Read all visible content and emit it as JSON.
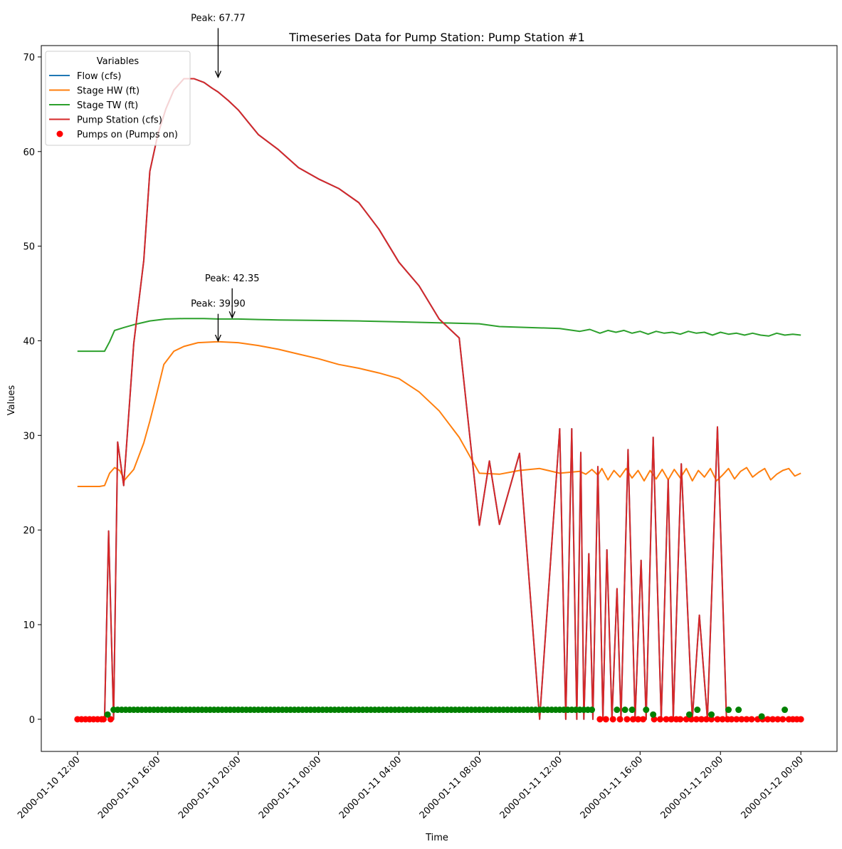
{
  "chart_data": {
    "type": "line",
    "title": "Timeseries Data for Pump Station: Pump Station #1",
    "xlabel": "Time",
    "ylabel": "Values",
    "x_tick_labels": [
      "2000-01-10 12:00",
      "2000-01-10 16:00",
      "2000-01-10 20:00",
      "2000-01-11 00:00",
      "2000-01-11 04:00",
      "2000-01-11 08:00",
      "2000-01-11 12:00",
      "2000-01-11 16:00",
      "2000-01-11 20:00",
      "2000-01-12 00:00"
    ],
    "x_tick_hours": [
      0,
      4,
      8,
      12,
      16,
      20,
      24,
      28,
      32,
      36
    ],
    "xlim_hours": [
      -1.8,
      37.8
    ],
    "ylim": [
      -3.4,
      71.2
    ],
    "y_ticks": [
      0,
      10,
      20,
      30,
      40,
      50,
      60,
      70
    ],
    "grid": false,
    "legend": {
      "title": "Variables",
      "placement": "top-left",
      "entries": [
        {
          "label": "Flow (cfs)",
          "color": "#1f77b4",
          "kind": "line"
        },
        {
          "label": "Stage HW (ft)",
          "color": "#ff7f0e",
          "kind": "line"
        },
        {
          "label": "Stage TW (ft)",
          "color": "#2ca02c",
          "kind": "line"
        },
        {
          "label": "Pump Station (cfs)",
          "color": "#d62728",
          "kind": "line"
        },
        {
          "label": "Pumps on (Pumps on)",
          "color": "#ff0000",
          "kind": "marker"
        }
      ]
    },
    "series": [
      {
        "name": "Flow (cfs)",
        "color": "#1f77b4",
        "x": [
          0,
          1.35,
          1.55,
          1.8,
          2.0,
          2.3,
          2.8,
          3.3,
          3.6,
          4.0,
          4.4,
          4.8,
          5.3,
          5.8,
          6.3,
          6.7,
          7.0,
          7.5,
          8.0,
          8.5,
          9.0,
          10.0,
          11.0,
          12.0,
          13.0,
          14.0,
          15.0,
          16.0,
          17.0,
          18.0,
          19.0,
          20.0,
          20.5,
          21.0,
          22.0,
          23.0,
          24.0,
          24.3,
          24.6,
          24.85,
          25.05,
          25.2,
          25.45,
          25.65,
          25.9,
          26.15,
          26.35,
          26.6,
          26.85,
          27.05,
          27.4,
          27.75,
          28.05,
          28.3,
          28.65,
          29.05,
          29.4,
          29.65,
          30.05,
          30.6,
          30.95,
          31.35,
          31.85,
          32.3,
          32.7,
          32.85,
          33.15,
          34.0,
          35.0,
          35.1,
          35.3,
          35.55,
          36.0
        ],
        "y": [
          0,
          0,
          19.9,
          0,
          29.3,
          24.7,
          39.7,
          48.5,
          57.9,
          61.8,
          64.5,
          66.5,
          67.7,
          67.7,
          67.3,
          66.7,
          66.3,
          65.4,
          64.4,
          63.1,
          61.8,
          60.2,
          58.3,
          57.1,
          56.1,
          54.6,
          51.8,
          48.3,
          45.8,
          42.3,
          40.3,
          20.5,
          27.3,
          20.6,
          28.1,
          0,
          30.7,
          0,
          30.7,
          0,
          28.2,
          0,
          17.5,
          0,
          26.7,
          0,
          17.9,
          0,
          13.8,
          0,
          28.5,
          0,
          16.8,
          0,
          29.8,
          0,
          25.3,
          0,
          27.0,
          0,
          11.0,
          0,
          30.9,
          0,
          0,
          0,
          0,
          0,
          0,
          0,
          0,
          0,
          0
        ]
      },
      {
        "name": "Stage HW (ft)",
        "color": "#ff7f0e",
        "x": [
          0,
          1.1,
          1.35,
          1.6,
          1.85,
          2.1,
          2.35,
          2.8,
          3.3,
          3.6,
          3.9,
          4.3,
          4.8,
          5.3,
          6.0,
          7.0,
          8.0,
          9.0,
          10.0,
          11.0,
          12.0,
          13.0,
          14.0,
          15.0,
          16.0,
          17.0,
          18.0,
          19.0,
          20.0,
          21.0,
          22.0,
          23.0,
          24.0,
          25.0,
          25.3,
          25.6,
          25.9,
          26.1,
          26.4,
          26.7,
          27.0,
          27.3,
          27.6,
          27.9,
          28.2,
          28.5,
          28.8,
          29.1,
          29.4,
          29.7,
          30.0,
          30.3,
          30.6,
          30.9,
          31.2,
          31.5,
          31.8,
          32.1,
          32.4,
          32.7,
          33.0,
          33.3,
          33.6,
          33.9,
          34.2,
          34.5,
          34.8,
          35.1,
          35.4,
          35.7,
          36.0
        ],
        "y": [
          24.6,
          24.6,
          24.7,
          26.0,
          26.6,
          26.3,
          25.3,
          26.4,
          29.2,
          31.5,
          34.0,
          37.5,
          38.9,
          39.4,
          39.8,
          39.9,
          39.8,
          39.5,
          39.1,
          38.6,
          38.1,
          37.5,
          37.1,
          36.6,
          36.0,
          34.6,
          32.6,
          29.8,
          26.0,
          25.9,
          26.3,
          26.5,
          26.0,
          26.2,
          25.9,
          26.4,
          25.8,
          26.5,
          25.3,
          26.3,
          25.6,
          26.5,
          25.5,
          26.3,
          25.2,
          26.3,
          25.4,
          26.4,
          25.3,
          26.4,
          25.5,
          26.5,
          25.2,
          26.3,
          25.6,
          26.5,
          25.2,
          25.8,
          26.5,
          25.4,
          26.2,
          26.6,
          25.6,
          26.1,
          26.5,
          25.3,
          25.9,
          26.3,
          26.5,
          25.7,
          26.0
        ]
      },
      {
        "name": "Stage TW (ft)",
        "color": "#2ca02c",
        "x": [
          0,
          1.35,
          1.6,
          1.85,
          2.3,
          2.8,
          3.6,
          4.4,
          5.3,
          6.3,
          7.0,
          8.0,
          9.0,
          10.0,
          12.0,
          14.0,
          16.0,
          18.0,
          20.0,
          21.0,
          24.0,
          25.0,
          25.5,
          26.0,
          26.4,
          26.8,
          27.2,
          27.6,
          28.0,
          28.4,
          28.8,
          29.2,
          29.6,
          30.0,
          30.4,
          30.8,
          31.2,
          31.6,
          32.0,
          32.4,
          32.8,
          33.2,
          33.6,
          34.0,
          34.4,
          34.8,
          35.2,
          35.6,
          36.0
        ],
        "y": [
          38.9,
          38.9,
          39.9,
          41.1,
          41.4,
          41.7,
          42.1,
          42.3,
          42.35,
          42.35,
          42.3,
          42.3,
          42.25,
          42.2,
          42.15,
          42.1,
          42.0,
          41.9,
          41.8,
          41.5,
          41.3,
          41.0,
          41.2,
          40.8,
          41.1,
          40.9,
          41.1,
          40.8,
          41.0,
          40.7,
          41.0,
          40.8,
          40.9,
          40.7,
          41.0,
          40.8,
          40.9,
          40.6,
          40.9,
          40.7,
          40.8,
          40.6,
          40.8,
          40.6,
          40.5,
          40.8,
          40.6,
          40.7,
          40.6
        ]
      },
      {
        "name": "Pump Station (cfs)",
        "color": "#d62728",
        "x": [
          0,
          1.35,
          1.55,
          1.8,
          2.0,
          2.3,
          2.8,
          3.3,
          3.6,
          4.0,
          4.4,
          4.8,
          5.3,
          5.8,
          6.3,
          6.7,
          7.0,
          7.5,
          8.0,
          8.5,
          9.0,
          10.0,
          11.0,
          12.0,
          13.0,
          14.0,
          15.0,
          16.0,
          17.0,
          18.0,
          19.0,
          20.0,
          20.5,
          21.0,
          22.0,
          23.0,
          24.0,
          24.3,
          24.6,
          24.85,
          25.05,
          25.2,
          25.45,
          25.65,
          25.9,
          26.15,
          26.35,
          26.6,
          26.85,
          27.05,
          27.4,
          27.75,
          28.05,
          28.3,
          28.65,
          29.05,
          29.4,
          29.65,
          30.05,
          30.6,
          30.95,
          31.35,
          31.85,
          32.3,
          32.7,
          32.85,
          33.15,
          34.0,
          35.0,
          35.1,
          35.3,
          35.55,
          36.0
        ],
        "y": [
          0,
          0,
          19.9,
          0,
          29.3,
          24.7,
          39.7,
          48.5,
          57.9,
          61.8,
          64.5,
          66.5,
          67.7,
          67.7,
          67.3,
          66.7,
          66.3,
          65.4,
          64.4,
          63.1,
          61.8,
          60.2,
          58.3,
          57.1,
          56.1,
          54.6,
          51.8,
          48.3,
          45.8,
          42.3,
          40.3,
          20.5,
          27.3,
          20.6,
          28.1,
          0,
          30.7,
          0,
          30.7,
          0,
          28.2,
          0,
          17.5,
          0,
          26.7,
          0,
          17.9,
          0,
          13.8,
          0,
          28.5,
          0,
          16.8,
          0,
          29.8,
          0,
          25.3,
          0,
          27.0,
          0,
          11.0,
          0,
          30.9,
          0,
          0,
          0,
          0,
          0,
          0,
          0,
          0,
          0,
          0
        ]
      }
    ],
    "pumps_on": {
      "name": "Pumps on (Pumps on)",
      "red_x": [
        0,
        0.2,
        0.4,
        0.6,
        0.8,
        1.0,
        1.2,
        1.3,
        1.65,
        26.0,
        26.3,
        26.65,
        27.0,
        27.35,
        27.65,
        27.9,
        28.15,
        28.7,
        29.0,
        29.3,
        29.55,
        29.8,
        30.0,
        30.3,
        30.55,
        30.8,
        31.05,
        31.3,
        31.55,
        31.85,
        32.1,
        32.35,
        32.55,
        32.8,
        33.05,
        33.3,
        33.55,
        33.85,
        34.1,
        34.35,
        34.6,
        34.85,
        35.1,
        35.4,
        35.6,
        35.8,
        36.0
      ],
      "green_x": [
        1.5,
        26.85,
        27.25,
        27.6,
        28.3,
        28.65,
        30.45,
        30.85,
        31.55,
        32.4,
        32.9,
        34.05,
        35.2
      ],
      "green_y": [
        0.5,
        1.0,
        1.0,
        1.0,
        1.0,
        0.5,
        0.5,
        1.0,
        0.5,
        1.0,
        1.0,
        0.3,
        1.0
      ],
      "continuous_green": {
        "from": 1.8,
        "to": 25.6,
        "step": 0.2,
        "y": 1.0
      }
    },
    "annotations": [
      {
        "text": "Peak: 67.77",
        "x": 7.0,
        "y": 67.77,
        "text_y": 73.8,
        "text_x": 7.0
      },
      {
        "text": "Peak: 42.35",
        "x": 7.7,
        "y": 42.35,
        "text_y": 46.3,
        "text_x": 7.7
      },
      {
        "text": "Peak: 39.90",
        "x": 7.0,
        "y": 39.9,
        "text_y": 43.6,
        "text_x": 7.0
      }
    ]
  }
}
